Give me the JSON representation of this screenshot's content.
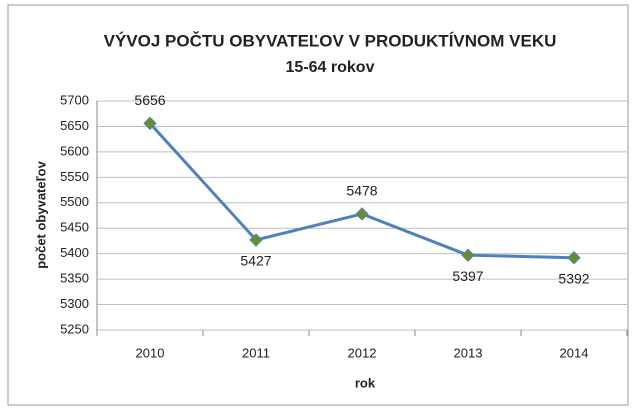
{
  "chart_data": {
    "type": "line",
    "title": "VÝVOJ POČTU OBYVATEĽOV V PRODUKTÍVNOM VEKU",
    "subtitle": "15-64 rokov",
    "x_label": "rok",
    "y_label": "počet obyvateľov",
    "categories": [
      "2010",
      "2011",
      "2012",
      "2013",
      "2014"
    ],
    "values": [
      5656,
      5427,
      5478,
      5397,
      5392
    ],
    "color": "#4f81bd",
    "marker_color": "#6b8e23",
    "ylim": [
      5250,
      5700
    ],
    "yticks": [
      5250,
      5300,
      5350,
      5400,
      5450,
      5500,
      5550,
      5600,
      5650,
      5700
    ],
    "grid": true
  }
}
